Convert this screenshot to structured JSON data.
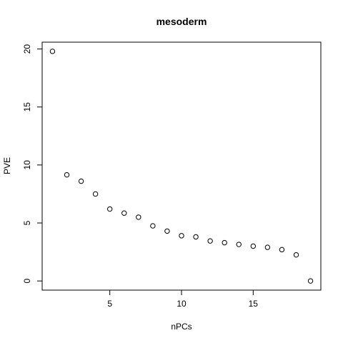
{
  "chart_data": {
    "type": "scatter",
    "title": "mesoderm",
    "xlabel": "nPCs",
    "ylabel": "PVE",
    "x": [
      1,
      2,
      3,
      4,
      5,
      6,
      7,
      8,
      9,
      10,
      11,
      12,
      13,
      14,
      15,
      16,
      17,
      18,
      19
    ],
    "y": [
      19.8,
      9.15,
      8.6,
      7.5,
      6.2,
      5.85,
      5.5,
      4.75,
      4.3,
      3.9,
      3.8,
      3.45,
      3.3,
      3.15,
      3.0,
      2.9,
      2.7,
      2.25,
      0.0
    ],
    "xlim": [
      0.28,
      19.72
    ],
    "ylim": [
      -0.79,
      20.59
    ],
    "x_ticks": [
      5,
      10,
      15
    ],
    "y_ticks": [
      0,
      5,
      10,
      15,
      20
    ],
    "grid": false,
    "marker": "open-circle"
  }
}
